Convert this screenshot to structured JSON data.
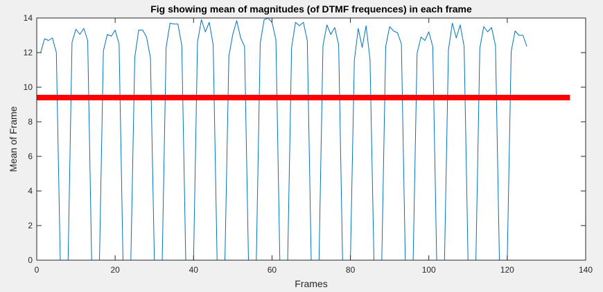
{
  "colors": {
    "figure_background": "#f0f0f0",
    "axes_background": "#ffffff",
    "axis_color": "#262626",
    "series_color": "#0072bd",
    "threshold_color": "#ff0000"
  },
  "chart_data": {
    "type": "line",
    "title": "Fig showing mean of magnitudes (of DTMF frequences) in each frame",
    "xlabel": "Frames",
    "ylabel": "Mean of Frame",
    "xlim": [
      0,
      140
    ],
    "ylim": [
      0,
      14
    ],
    "xticks": [
      0,
      20,
      40,
      60,
      80,
      100,
      120,
      140
    ],
    "yticks": [
      0,
      2,
      4,
      6,
      8,
      10,
      12,
      14
    ],
    "grid": false,
    "legend": "none",
    "series": [
      {
        "x": [
          0,
          1,
          2,
          3,
          4,
          5,
          6,
          7,
          8,
          9,
          10,
          11,
          12,
          13,
          14,
          15,
          16,
          17,
          18,
          19,
          20,
          21,
          22,
          23,
          24,
          25,
          26,
          27,
          28,
          29,
          30,
          31,
          32,
          33,
          34,
          35,
          36,
          37,
          38,
          39,
          40,
          41,
          42,
          43,
          44,
          45,
          46,
          47,
          48,
          49,
          50,
          51,
          52,
          53,
          54,
          55,
          56,
          57,
          58,
          59,
          60,
          61,
          62,
          63,
          64,
          65,
          66,
          67,
          68,
          69,
          70,
          71,
          72,
          73,
          74,
          75,
          76,
          77,
          78,
          79,
          80,
          81,
          82,
          83,
          84,
          85,
          86,
          87,
          88,
          89,
          90,
          91,
          92,
          93,
          94,
          95,
          96,
          97,
          98,
          99,
          100,
          101,
          102,
          103,
          104,
          105,
          106,
          107,
          108,
          109,
          110,
          111,
          112,
          113,
          114,
          115,
          116,
          117,
          118,
          119,
          120,
          121,
          122,
          123,
          124,
          125
        ],
        "y": [
          12.0,
          12.0,
          12.8,
          12.7,
          12.85,
          12.0,
          0,
          0,
          0,
          12.6,
          13.35,
          13.05,
          13.4,
          12.7,
          0,
          0,
          0,
          12.1,
          13.05,
          12.95,
          13.3,
          12.5,
          0,
          0,
          0,
          11.7,
          13.3,
          13.3,
          12.9,
          11.7,
          0,
          0,
          0,
          12.3,
          13.7,
          13.65,
          13.65,
          12.4,
          0,
          0,
          0,
          12.6,
          13.9,
          13.2,
          13.75,
          12.45,
          0,
          0,
          0,
          11.8,
          13.05,
          13.85,
          12.85,
          12.35,
          0,
          0,
          0,
          12.55,
          13.9,
          14.0,
          13.75,
          12.75,
          0,
          0,
          0,
          12.3,
          13.75,
          13.55,
          13.75,
          12.7,
          0,
          0,
          0,
          12.4,
          13.6,
          13.05,
          13.45,
          12.45,
          0,
          0,
          0,
          11.55,
          13.4,
          12.3,
          13.55,
          11.6,
          0,
          0,
          0,
          12.35,
          13.5,
          13.25,
          13.15,
          12.5,
          0,
          0,
          0,
          11.95,
          12.9,
          12.7,
          13.2,
          12.35,
          0,
          0,
          0,
          12.15,
          13.7,
          12.85,
          13.6,
          12.35,
          0,
          0,
          0,
          12.25,
          13.5,
          13.2,
          13.45,
          12.4,
          0,
          0,
          0,
          12.05,
          13.25,
          13.0,
          13.0,
          12.35
        ]
      },
      {
        "x": [
          0,
          136
        ],
        "y": [
          9.4,
          9.4
        ]
      }
    ]
  }
}
